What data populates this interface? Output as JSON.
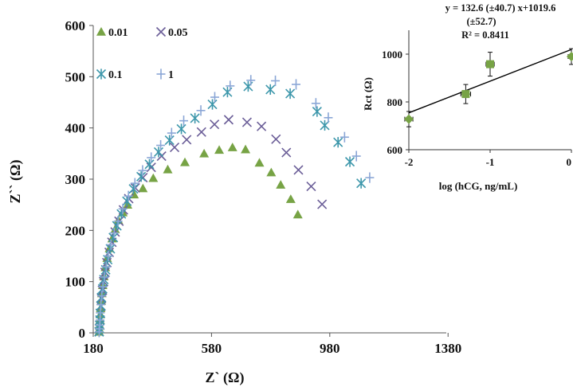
{
  "chart_data": [
    {
      "type": "scatter",
      "xlabel": "Z` (Ω)",
      "ylabel": "Z`` (Ω)",
      "xlim": [
        180,
        1560
      ],
      "ylim": [
        0,
        600
      ],
      "x_ticks": [
        180,
        580,
        980,
        1380
      ],
      "y_ticks": [
        0,
        100,
        200,
        300,
        400,
        500,
        600
      ],
      "legend_placement": "top-left",
      "series": [
        {
          "name": "0.01",
          "marker": "triangle",
          "color": "#77a345",
          "points": [
            [
              200,
              2
            ],
            [
              201,
              8
            ],
            [
              202,
              15
            ],
            [
              203,
              25
            ],
            [
              204,
              36
            ],
            [
              205,
              48
            ],
            [
              207,
              62
            ],
            [
              209,
              77
            ],
            [
              212,
              93
            ],
            [
              216,
              110
            ],
            [
              221,
              128
            ],
            [
              227,
              146
            ],
            [
              235,
              165
            ],
            [
              244,
              184
            ],
            [
              254,
              202
            ],
            [
              265,
              220
            ],
            [
              280,
              235
            ],
            [
              296,
              250
            ],
            [
              318,
              270
            ],
            [
              348,
              282
            ],
            [
              383,
              302
            ],
            [
              432,
              319
            ],
            [
              490,
              333
            ],
            [
              555,
              350
            ],
            [
              606,
              357
            ],
            [
              651,
              362
            ],
            [
              695,
              358
            ],
            [
              742,
              332
            ],
            [
              782,
              313
            ],
            [
              814,
              289
            ],
            [
              848,
              261
            ],
            [
              872,
              231
            ]
          ]
        },
        {
          "name": "0.05",
          "marker": "x",
          "color": "#6b5e98",
          "points": [
            [
              200,
              2
            ],
            [
              201,
              8
            ],
            [
              202,
              15
            ],
            [
              203,
              25
            ],
            [
              204,
              38
            ],
            [
              206,
              52
            ],
            [
              208,
              67
            ],
            [
              211,
              83
            ],
            [
              215,
              100
            ],
            [
              220,
              118
            ],
            [
              226,
              137
            ],
            [
              234,
              157
            ],
            [
              243,
              177
            ],
            [
              254,
              197
            ],
            [
              267,
              218
            ],
            [
              282,
              240
            ],
            [
              300,
              262
            ],
            [
              322,
              283
            ],
            [
              348,
              303
            ],
            [
              376,
              323
            ],
            [
              411,
              345
            ],
            [
              455,
              362
            ],
            [
              496,
              377
            ],
            [
              546,
              392
            ],
            [
              590,
              407
            ],
            [
              638,
              416
            ],
            [
              700,
              411
            ],
            [
              749,
              403
            ],
            [
              798,
              378
            ],
            [
              833,
              352
            ],
            [
              874,
              318
            ],
            [
              917,
              286
            ],
            [
              954,
              251
            ]
          ]
        },
        {
          "name": "0.1",
          "marker": "asterisk",
          "color": "#3d97ab",
          "points": [
            [
              200,
              2
            ],
            [
              201,
              8
            ],
            [
              202,
              15
            ],
            [
              203,
              25
            ],
            [
              204,
              38
            ],
            [
              206,
              53
            ],
            [
              208,
              69
            ],
            [
              212,
              86
            ],
            [
              216,
              104
            ],
            [
              222,
              123
            ],
            [
              229,
              143
            ],
            [
              238,
              164
            ],
            [
              248,
              186
            ],
            [
              260,
              209
            ],
            [
              275,
              232
            ],
            [
              294,
              257
            ],
            [
              316,
              281
            ],
            [
              342,
              305
            ],
            [
              370,
              329
            ],
            [
              401,
              353
            ],
            [
              438,
              376
            ],
            [
              478,
              398
            ],
            [
              524,
              419
            ],
            [
              583,
              446
            ],
            [
              634,
              470
            ],
            [
              704,
              481
            ],
            [
              779,
              475
            ],
            [
              846,
              467
            ],
            [
              937,
              432
            ],
            [
              963,
              405
            ],
            [
              1008,
              372
            ],
            [
              1048,
              334
            ],
            [
              1086,
              292
            ]
          ]
        },
        {
          "name": "1",
          "marker": "plus",
          "color": "#8aa6d6",
          "points": [
            [
              200,
              2
            ],
            [
              201,
              8
            ],
            [
              202,
              15
            ],
            [
              203,
              25
            ],
            [
              204,
              39
            ],
            [
              206,
              55
            ],
            [
              209,
              72
            ],
            [
              213,
              90
            ],
            [
              218,
              109
            ],
            [
              224,
              129
            ],
            [
              231,
              150
            ],
            [
              240,
              172
            ],
            [
              251,
              195
            ],
            [
              264,
              218
            ],
            [
              280,
              242
            ],
            [
              299,
              267
            ],
            [
              321,
              292
            ],
            [
              347,
              317
            ],
            [
              376,
              342
            ],
            [
              408,
              366
            ],
            [
              445,
              390
            ],
            [
              486,
              414
            ],
            [
              544,
              434
            ],
            [
              591,
              460
            ],
            [
              643,
              482
            ],
            [
              713,
              493
            ],
            [
              796,
              492
            ],
            [
              866,
              485
            ],
            [
              933,
              448
            ],
            [
              975,
              420
            ],
            [
              1030,
              382
            ],
            [
              1070,
              345
            ],
            [
              1115,
              303
            ]
          ]
        }
      ]
    },
    {
      "type": "scatter",
      "xlabel": "log (hCG, ng/mL)",
      "ylabel": "Rct (Ω)",
      "xlim": [
        -2,
        0
      ],
      "ylim": [
        600,
        1100
      ],
      "x_ticks": [
        -2,
        -1,
        0
      ],
      "y_ticks": [
        600,
        800,
        1000
      ],
      "color": "#77a345",
      "fit_color": "#000000",
      "points": [
        {
          "x": -2.0,
          "y": 728,
          "yerr": 32,
          "xerr": 0.05,
          "marker": "diamond"
        },
        {
          "x": -1.3,
          "y": 833,
          "yerr": 40,
          "xerr": 0.06,
          "marker": "square"
        },
        {
          "x": -1.0,
          "y": 958,
          "yerr": 50,
          "xerr": 0.05,
          "marker": "square"
        },
        {
          "x": 0.0,
          "y": 990,
          "yerr": 33,
          "xerr": 0.04,
          "marker": "diamond"
        }
      ],
      "fit": {
        "slope": 132.6,
        "intercept": 1019.6
      },
      "annotation": {
        "line1": "y = 132.6 (±40.7) x+1019.6",
        "line2": "(±52.7)",
        "line3": "R² = 0.8411"
      }
    }
  ]
}
